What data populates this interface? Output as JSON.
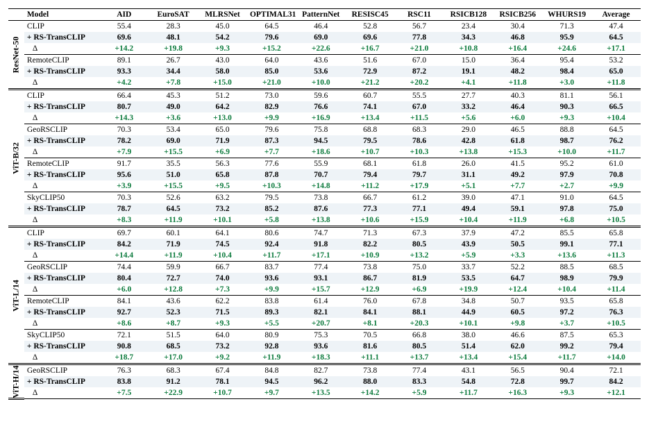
{
  "columns": [
    "Model",
    "AID",
    "EuroSAT",
    "MLRSNet",
    "OPTIMAL31",
    "PatternNet",
    "RESISC45",
    "RSC11",
    "RSICB128",
    "RSICB256",
    "WHURS19",
    "Average"
  ],
  "arch_groups": [
    {
      "arch": "ResNet-50",
      "blocks": [
        {
          "base": "CLIP",
          "vals": [
            "55.4",
            "28.3",
            "45.0",
            "64.5",
            "46.4",
            "52.8",
            "56.7",
            "23.4",
            "30.4",
            "71.3",
            "47.4"
          ],
          "plus": "+ RS-TransCLIP",
          "plus_vals": [
            "69.6",
            "48.1",
            "54.2",
            "79.6",
            "69.0",
            "69.6",
            "77.8",
            "34.3",
            "46.8",
            "95.9",
            "64.5"
          ],
          "delta": [
            "+14.2",
            "+19.8",
            "+9.3",
            "+15.2",
            "+22.6",
            "+16.7",
            "+21.0",
            "+10.8",
            "+16.4",
            "+24.6",
            "+17.1"
          ]
        },
        {
          "base": "RemoteCLIP",
          "vals": [
            "89.1",
            "26.7",
            "43.0",
            "64.0",
            "43.6",
            "51.6",
            "67.0",
            "15.0",
            "36.4",
            "95.4",
            "53.2"
          ],
          "plus": "+ RS-TransCLIP",
          "plus_vals": [
            "93.3",
            "34.4",
            "58.0",
            "85.0",
            "53.6",
            "72.9",
            "87.2",
            "19.1",
            "48.2",
            "98.4",
            "65.0"
          ],
          "delta": [
            "+4.2",
            "+7.8",
            "+15.0",
            "+21.0",
            "+10.0",
            "+21.2",
            "+20.2",
            "+4.1",
            "+11.8",
            "+3.0",
            "+11.8"
          ]
        }
      ]
    },
    {
      "arch": "ViT-B/32",
      "blocks": [
        {
          "base": "CLIP",
          "vals": [
            "66.4",
            "45.3",
            "51.2",
            "73.0",
            "59.6",
            "60.7",
            "55.5",
            "27.7",
            "40.3",
            "81.1",
            "56.1"
          ],
          "plus": "+ RS-TransCLIP",
          "plus_vals": [
            "80.7",
            "49.0",
            "64.2",
            "82.9",
            "76.6",
            "74.1",
            "67.0",
            "33.2",
            "46.4",
            "90.3",
            "66.5"
          ],
          "delta": [
            "+14.3",
            "+3.6",
            "+13.0",
            "+9.9",
            "+16.9",
            "+13.4",
            "+11.5",
            "+5.6",
            "+6.0",
            "+9.3",
            "+10.4"
          ]
        },
        {
          "base": "GeoRSCLIP",
          "vals": [
            "70.3",
            "53.4",
            "65.0",
            "79.6",
            "75.8",
            "68.8",
            "68.3",
            "29.0",
            "46.5",
            "88.8",
            "64.5"
          ],
          "plus": "+ RS-TransCLIP",
          "plus_vals": [
            "78.2",
            "69.0",
            "71.9",
            "87.3",
            "94.5",
            "79.5",
            "78.6",
            "42.8",
            "61.8",
            "98.7",
            "76.2"
          ],
          "delta": [
            "+7.9",
            "+15.5",
            "+6.9",
            "+7.7",
            "+18.6",
            "+10.7",
            "+10.3",
            "+13.8",
            "+15.3",
            "+10.0",
            "+11.7"
          ]
        },
        {
          "base": "RemoteCLIP",
          "vals": [
            "91.7",
            "35.5",
            "56.3",
            "77.6",
            "55.9",
            "68.1",
            "61.8",
            "26.0",
            "41.5",
            "95.2",
            "61.0"
          ],
          "plus": "+ RS-TransCLIP",
          "plus_vals": [
            "95.6",
            "51.0",
            "65.8",
            "87.8",
            "70.7",
            "79.4",
            "79.7",
            "31.1",
            "49.2",
            "97.9",
            "70.8"
          ],
          "delta": [
            "+3.9",
            "+15.5",
            "+9.5",
            "+10.3",
            "+14.8",
            "+11.2",
            "+17.9",
            "+5.1",
            "+7.7",
            "+2.7",
            "+9.9"
          ]
        },
        {
          "base": "SkyCLIP50",
          "vals": [
            "70.3",
            "52.6",
            "63.2",
            "79.5",
            "73.8",
            "66.7",
            "61.2",
            "39.0",
            "47.1",
            "91.0",
            "64.5"
          ],
          "plus": "+ RS-TransCLIP",
          "plus_vals": [
            "78.7",
            "64.5",
            "73.2",
            "85.2",
            "87.6",
            "77.3",
            "77.1",
            "49.4",
            "59.1",
            "97.8",
            "75.0"
          ],
          "delta": [
            "+8.3",
            "+11.9",
            "+10.1",
            "+5.8",
            "+13.8",
            "+10.6",
            "+15.9",
            "+10.4",
            "+11.9",
            "+6.8",
            "+10.5"
          ]
        }
      ]
    },
    {
      "arch": "ViT-L/14",
      "blocks": [
        {
          "base": "CLIP",
          "vals": [
            "69.7",
            "60.1",
            "64.1",
            "80.6",
            "74.7",
            "71.3",
            "67.3",
            "37.9",
            "47.2",
            "85.5",
            "65.8"
          ],
          "plus": "+ RS-TransCLIP",
          "plus_vals": [
            "84.2",
            "71.9",
            "74.5",
            "92.4",
            "91.8",
            "82.2",
            "80.5",
            "43.9",
            "50.5",
            "99.1",
            "77.1"
          ],
          "delta": [
            "+14.4",
            "+11.9",
            "+10.4",
            "+11.7",
            "+17.1",
            "+10.9",
            "+13.2",
            "+5.9",
            "+3.3",
            "+13.6",
            "+11.3"
          ]
        },
        {
          "base": "GeoRSCLIP",
          "vals": [
            "74.4",
            "59.9",
            "66.7",
            "83.7",
            "77.4",
            "73.8",
            "75.0",
            "33.7",
            "52.2",
            "88.5",
            "68.5"
          ],
          "plus": "+ RS-TransCLIP",
          "plus_vals": [
            "80.4",
            "72.7",
            "74.0",
            "93.6",
            "93.1",
            "86.7",
            "81.9",
            "53.5",
            "64.7",
            "98.9",
            "79.9"
          ],
          "delta": [
            "+6.0",
            "+12.8",
            "+7.3",
            "+9.9",
            "+15.7",
            "+12.9",
            "+6.9",
            "+19.9",
            "+12.4",
            "+10.4",
            "+11.4"
          ]
        },
        {
          "base": "RemoteCLIP",
          "vals": [
            "84.1",
            "43.6",
            "62.2",
            "83.8",
            "61.4",
            "76.0",
            "67.8",
            "34.8",
            "50.7",
            "93.5",
            "65.8"
          ],
          "plus": "+ RS-TransCLIP",
          "plus_vals": [
            "92.7",
            "52.3",
            "71.5",
            "89.3",
            "82.1",
            "84.1",
            "88.1",
            "44.9",
            "60.5",
            "97.2",
            "76.3"
          ],
          "delta": [
            "+8.6",
            "+8.7",
            "+9.3",
            "+5.5",
            "+20.7",
            "+8.1",
            "+20.3",
            "+10.1",
            "+9.8",
            "+3.7",
            "+10.5"
          ]
        },
        {
          "base": "SkyCLIP50",
          "vals": [
            "72.1",
            "51.5",
            "64.0",
            "80.9",
            "75.3",
            "70.5",
            "66.8",
            "38.0",
            "46.6",
            "87.5",
            "65.3"
          ],
          "plus": "+ RS-TransCLIP",
          "plus_vals": [
            "90.8",
            "68.5",
            "73.2",
            "92.8",
            "93.6",
            "81.6",
            "80.5",
            "51.4",
            "62.0",
            "99.2",
            "79.4"
          ],
          "delta": [
            "+18.7",
            "+17.0",
            "+9.2",
            "+11.9",
            "+18.3",
            "+11.1",
            "+13.7",
            "+13.4",
            "+15.4",
            "+11.7",
            "+14.0"
          ]
        }
      ]
    },
    {
      "arch": "ViT-H/14",
      "blocks": [
        {
          "base": "GeoRSCLIP",
          "vals": [
            "76.3",
            "68.3",
            "67.4",
            "84.8",
            "82.7",
            "73.8",
            "77.4",
            "43.1",
            "56.5",
            "90.4",
            "72.1"
          ],
          "plus": "+ RS-TransCLIP",
          "plus_vals": [
            "83.8",
            "91.2",
            "78.1",
            "94.5",
            "96.2",
            "88.0",
            "83.3",
            "54.8",
            "72.8",
            "99.7",
            "84.2"
          ],
          "delta": [
            "+7.5",
            "+22.9",
            "+10.7",
            "+9.7",
            "+13.5",
            "+14.2",
            "+5.9",
            "+11.7",
            "+16.3",
            "+9.3",
            "+12.1"
          ]
        }
      ]
    }
  ],
  "delta_label": "Δ",
  "colors": {
    "delta": "#0b7a3c",
    "shade": "#eef3f7"
  }
}
